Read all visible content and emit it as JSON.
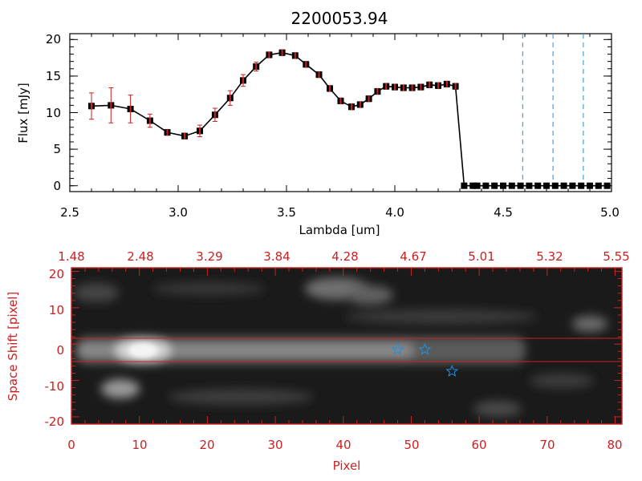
{
  "chart_data": [
    {
      "type": "line",
      "title": "2200053.94",
      "xlabel": "Lambda [um]",
      "ylabel": "Flux [mJy]",
      "xlim": [
        2.5,
        5.0
      ],
      "ylim": [
        -0.8,
        20.8
      ],
      "xticks": [
        "2.5",
        "3.0",
        "3.5",
        "4.0",
        "4.5",
        "5.0"
      ],
      "yticks": [
        "0",
        "5",
        "10",
        "15",
        "20"
      ],
      "colors": {
        "line": "#000000",
        "marker": "#000000",
        "error": "#cc2020",
        "dashed": "#1f90e0"
      },
      "series": [
        {
          "x": [
            2.6,
            2.69,
            2.78,
            2.87,
            2.95,
            3.03,
            3.1,
            3.17,
            3.24,
            3.3,
            3.36,
            3.42,
            3.48,
            3.54,
            3.59,
            3.65,
            3.7,
            3.75,
            3.8,
            3.84,
            3.88,
            3.92,
            3.96,
            4.0,
            4.04,
            4.08,
            4.12,
            4.16,
            4.2,
            4.24,
            4.28,
            4.32,
            4.36,
            4.38,
            4.42,
            4.46,
            4.5,
            4.54,
            4.58,
            4.62,
            4.66,
            4.7,
            4.74,
            4.78,
            4.82,
            4.86,
            4.9,
            4.94,
            4.98
          ],
          "y": [
            10.9,
            11.0,
            10.5,
            8.9,
            7.3,
            6.8,
            7.5,
            9.7,
            12.0,
            14.4,
            16.3,
            17.9,
            18.2,
            17.8,
            16.6,
            15.2,
            13.3,
            11.6,
            10.8,
            11.1,
            11.9,
            12.9,
            13.6,
            13.5,
            13.4,
            13.4,
            13.5,
            13.8,
            13.7,
            13.9,
            13.6,
            0,
            0,
            0,
            0,
            0,
            0,
            0,
            0,
            0,
            0,
            0,
            0,
            0,
            0,
            0,
            0,
            0,
            0
          ],
          "err": [
            1.8,
            2.4,
            1.9,
            0.9,
            0.4,
            0.4,
            0.8,
            0.9,
            1.0,
            0.8,
            0.6,
            0.4,
            0.4,
            0.4,
            0.4,
            0.4,
            0.4,
            0.4,
            0.4,
            0.4,
            0.4,
            0.4,
            0.4,
            0.4,
            0.4,
            0.4,
            0.4,
            0.4,
            0.4,
            0.4,
            0.4,
            0,
            0,
            0,
            0,
            0,
            0,
            0,
            0,
            0,
            0,
            0,
            0,
            0,
            0,
            0,
            0,
            0,
            0
          ]
        }
      ],
      "vlines": [
        4.59,
        4.73,
        4.87
      ]
    },
    {
      "type": "heatmap",
      "xlabel": "Pixel",
      "ylabel": "Space Shift [pixel]",
      "xlim": [
        0,
        81
      ],
      "ylim": [
        -22,
        21
      ],
      "xticks": [
        "0",
        "10",
        "20",
        "30",
        "40",
        "50",
        "60",
        "70",
        "80"
      ],
      "yticks": [
        "20",
        "10",
        "0",
        "-10",
        "-20"
      ],
      "top_ticks": [
        "1.48",
        "2.48",
        "3.29",
        "3.84",
        "4.28",
        "4.67",
        "5.01",
        "5.32",
        "5.55"
      ],
      "extraction_lines": [
        3,
        -3
      ],
      "stars": [
        [
          48,
          -1.5
        ],
        [
          52,
          -1.5
        ],
        [
          56,
          -7.5
        ]
      ],
      "colors": {
        "axis": "#cc2020",
        "star": "#1f90e0"
      }
    }
  ]
}
